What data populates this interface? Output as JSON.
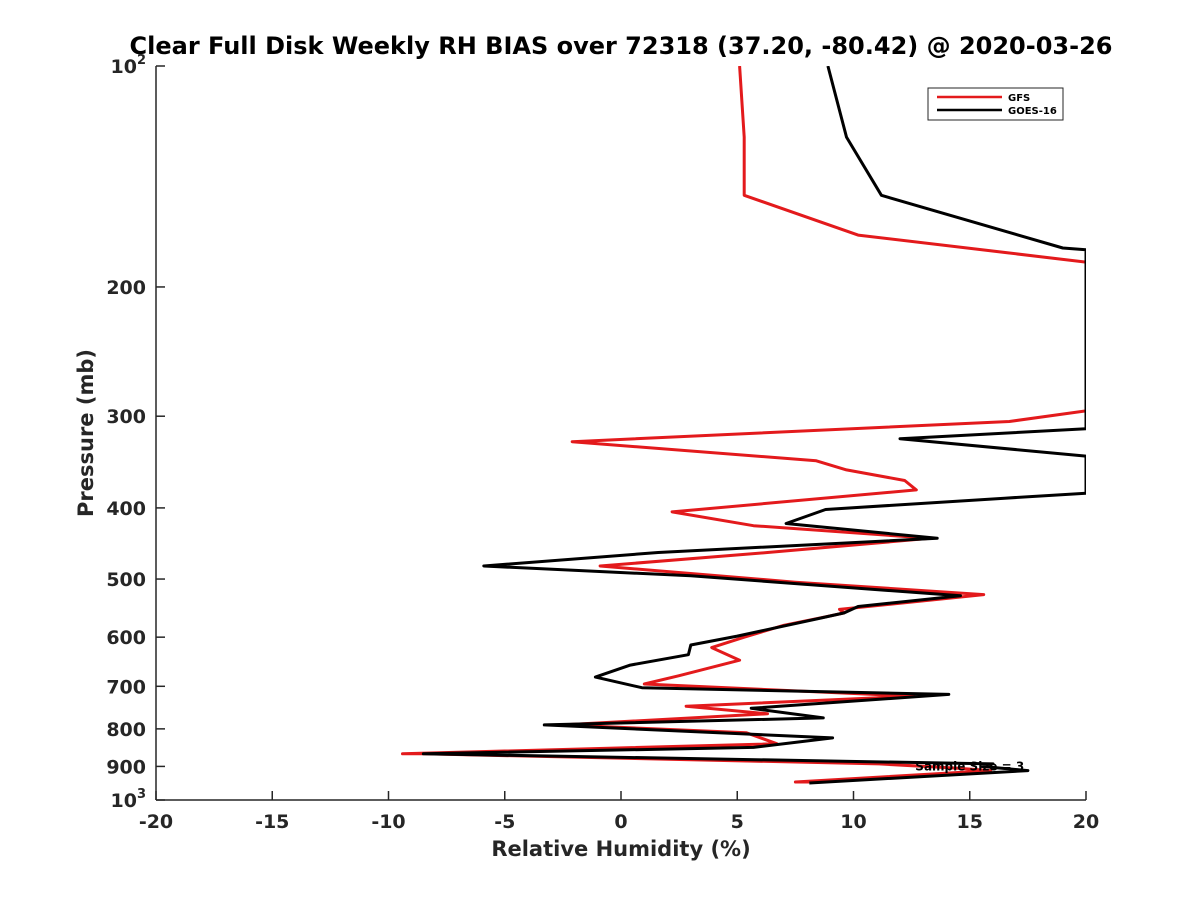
{
  "chart_data": {
    "type": "line",
    "title": "Clear Full Disk Weekly RH BIAS over 72318 (37.20, -80.42) @ 2020-03-26",
    "xlabel": "Relative Humidity (%)",
    "ylabel": "Pressure (mb)",
    "xlim": [
      -20,
      20
    ],
    "ylim": [
      100,
      1000
    ],
    "y_scale": "log",
    "y_reversed": true,
    "grid": false,
    "legend_position": "top-right",
    "x_ticks": [
      -20,
      -15,
      -10,
      -5,
      0,
      5,
      10,
      15,
      20
    ],
    "x_tick_labels": [
      "-20",
      "-15",
      "-10",
      "-5",
      "0",
      "5",
      "10",
      "15",
      "20"
    ],
    "y_ticks": [
      {
        "value": 100,
        "base": "10",
        "exp": "2"
      },
      {
        "value": 200,
        "label": "200"
      },
      {
        "value": 300,
        "label": "300"
      },
      {
        "value": 400,
        "label": "400"
      },
      {
        "value": 500,
        "label": "500"
      },
      {
        "value": 600,
        "label": "600"
      },
      {
        "value": 700,
        "label": "700"
      },
      {
        "value": 800,
        "label": "800"
      },
      {
        "value": 900,
        "label": "900"
      },
      {
        "value": 1000,
        "base": "10",
        "exp": "3"
      }
    ],
    "series": [
      {
        "name": "GFS",
        "color": "#e31a1c",
        "points": [
          [
            5.1,
            100
          ],
          [
            5.3,
            125
          ],
          [
            5.3,
            150
          ],
          [
            10.2,
            170
          ],
          [
            20.0,
            185
          ],
          [
            20.0,
            295
          ],
          [
            16.7,
            305
          ],
          [
            -2.1,
            325
          ],
          [
            8.4,
            345
          ],
          [
            9.7,
            355
          ],
          [
            12.2,
            367
          ],
          [
            12.7,
            378
          ],
          [
            2.2,
            405
          ],
          [
            5.7,
            423
          ],
          [
            13.3,
            440
          ],
          [
            6.3,
            460
          ],
          [
            -0.9,
            480
          ],
          [
            7.5,
            505
          ],
          [
            15.6,
            525
          ],
          [
            9.4,
            550
          ],
          [
            9.6,
            556
          ],
          [
            8.8,
            563
          ],
          [
            7.0,
            578
          ],
          [
            5.3,
            600
          ],
          [
            3.9,
            620
          ],
          [
            5.1,
            645
          ],
          [
            2.5,
            677
          ],
          [
            1.0,
            695
          ],
          [
            12.6,
            722
          ],
          [
            2.8,
            745
          ],
          [
            6.3,
            763
          ],
          [
            -2.5,
            790
          ],
          [
            5.4,
            810
          ],
          [
            6.7,
            838
          ],
          [
            -9.4,
            865
          ],
          [
            -8.5,
            865
          ],
          [
            11.1,
            893
          ],
          [
            14.5,
            905
          ],
          [
            15.9,
            912
          ],
          [
            7.5,
            945
          ],
          [
            8.1,
            945
          ]
        ]
      },
      {
        "name": "GOES-16",
        "color": "#000000",
        "points": [
          [
            8.9,
            100
          ],
          [
            9.7,
            125
          ],
          [
            11.2,
            150
          ],
          [
            19.0,
            177
          ],
          [
            20.0,
            178
          ],
          [
            20.0,
            312
          ],
          [
            12.0,
            322
          ],
          [
            20.0,
            340
          ],
          [
            20.0,
            382
          ],
          [
            16.5,
            388
          ],
          [
            8.8,
            402
          ],
          [
            7.1,
            420
          ],
          [
            13.6,
            440
          ],
          [
            1.6,
            460
          ],
          [
            -5.9,
            480
          ],
          [
            3.0,
            495
          ],
          [
            14.6,
            527
          ],
          [
            10.2,
            545
          ],
          [
            9.6,
            556
          ],
          [
            8.6,
            565
          ],
          [
            5.0,
            598
          ],
          [
            3.0,
            615
          ],
          [
            2.9,
            634
          ],
          [
            0.4,
            655
          ],
          [
            -1.1,
            680
          ],
          [
            0.9,
            703
          ],
          [
            14.1,
            718
          ],
          [
            5.6,
            750
          ],
          [
            8.7,
            773
          ],
          [
            -3.3,
            790
          ],
          [
            9.1,
            823
          ],
          [
            5.7,
            848
          ],
          [
            -8.5,
            865
          ],
          [
            16.0,
            893
          ],
          [
            15.5,
            900
          ],
          [
            17.5,
            912
          ],
          [
            8.1,
            948
          ]
        ]
      }
    ],
    "annotations": [
      {
        "text": "Sample Size = 3",
        "x": 15.0,
        "y": 900
      }
    ]
  }
}
